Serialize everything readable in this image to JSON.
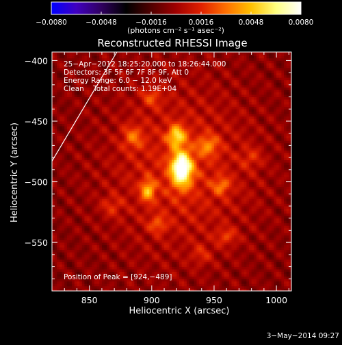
{
  "chart_data": {
    "type": "heatmap",
    "title": "Reconstructed RHESSI Image",
    "xlabel": "Heliocentric X (arcsec)",
    "ylabel": "Heliocentric Y (arcsec)",
    "xlim": [
      820,
      1012
    ],
    "ylim": [
      -590,
      -393
    ],
    "xticks": [
      850,
      900,
      950,
      1000
    ],
    "yticks": [
      -400,
      -450,
      -500,
      -550
    ],
    "xtick_labels": [
      "850",
      "900",
      "950",
      "1000"
    ],
    "ytick_labels": [
      "−400",
      "−450",
      "−500",
      "−550"
    ],
    "colorbar": {
      "range": [
        -0.008,
        0.008
      ],
      "ticks": [
        -0.008,
        -0.0048,
        -0.0016,
        0.0016,
        0.0048,
        0.008
      ],
      "tick_labels": [
        "−0.0080",
        "−0.0048",
        "−0.0016",
        "0.0016",
        "0.0048",
        "0.0080"
      ],
      "units_label": "(photons cm⁻² s⁻¹ asec⁻²)",
      "colors": [
        "#0000ff",
        "#4000c0",
        "#300060",
        "#000000",
        "#500000",
        "#a00000",
        "#e02000",
        "#ff7000",
        "#ffc000",
        "#ffff80",
        "#ffffff"
      ]
    },
    "annotations": {
      "time_range": "25−Apr−2012 18:25:20.000 to 18:26:44.000",
      "detectors": "Detectors: 3F 5F 6F 7F 8F 9F, Att 0",
      "energy_range": "Energy Range: 6.0 − 12.0 keV",
      "clean_counts": "Clean    Total counts: 1.19E+04",
      "peak_position": "Position of Peak = [924,−489]"
    },
    "peak": [
      924,
      -489
    ],
    "sources": [
      {
        "x": 924,
        "y": -489,
        "amplitude": 0.008,
        "sigma_x": 6,
        "sigma_y": 10
      },
      {
        "x": 920,
        "y": -462,
        "amplitude": 0.0048,
        "sigma_x": 5,
        "sigma_y": 6
      },
      {
        "x": 897,
        "y": -507,
        "amplitude": 0.0042,
        "sigma_x": 4,
        "sigma_y": 6
      },
      {
        "x": 945,
        "y": -470,
        "amplitude": 0.0028,
        "sigma_x": 6,
        "sigma_y": 6
      },
      {
        "x": 956,
        "y": -503,
        "amplitude": 0.0026,
        "sigma_x": 5,
        "sigma_y": 5
      },
      {
        "x": 885,
        "y": -463,
        "amplitude": 0.0025,
        "sigma_x": 6,
        "sigma_y": 7
      },
      {
        "x": 905,
        "y": -535,
        "amplitude": 0.0022,
        "sigma_x": 5,
        "sigma_y": 5
      },
      {
        "x": 960,
        "y": -545,
        "amplitude": 0.002,
        "sigma_x": 6,
        "sigma_y": 5
      },
      {
        "x": 900,
        "y": -430,
        "amplitude": 0.002,
        "sigma_x": 6,
        "sigma_y": 6
      },
      {
        "x": 980,
        "y": -480,
        "amplitude": 0.0015,
        "sigma_x": 6,
        "sigma_y": 6
      },
      {
        "x": 868,
        "y": -520,
        "amplitude": 0.0016,
        "sigma_x": 6,
        "sigma_y": 6
      },
      {
        "x": 940,
        "y": -560,
        "amplitude": 0.0014,
        "sigma_x": 6,
        "sigma_y": 6
      }
    ],
    "background": {
      "level": 0.0009,
      "falloff_x": 60,
      "falloff_y": 70
    },
    "limb_line": {
      "x": [
        820,
        872
      ],
      "y": [
        -483,
        -393
      ]
    }
  },
  "footer": {
    "date_stamp": "3−May−2014 09:27"
  }
}
